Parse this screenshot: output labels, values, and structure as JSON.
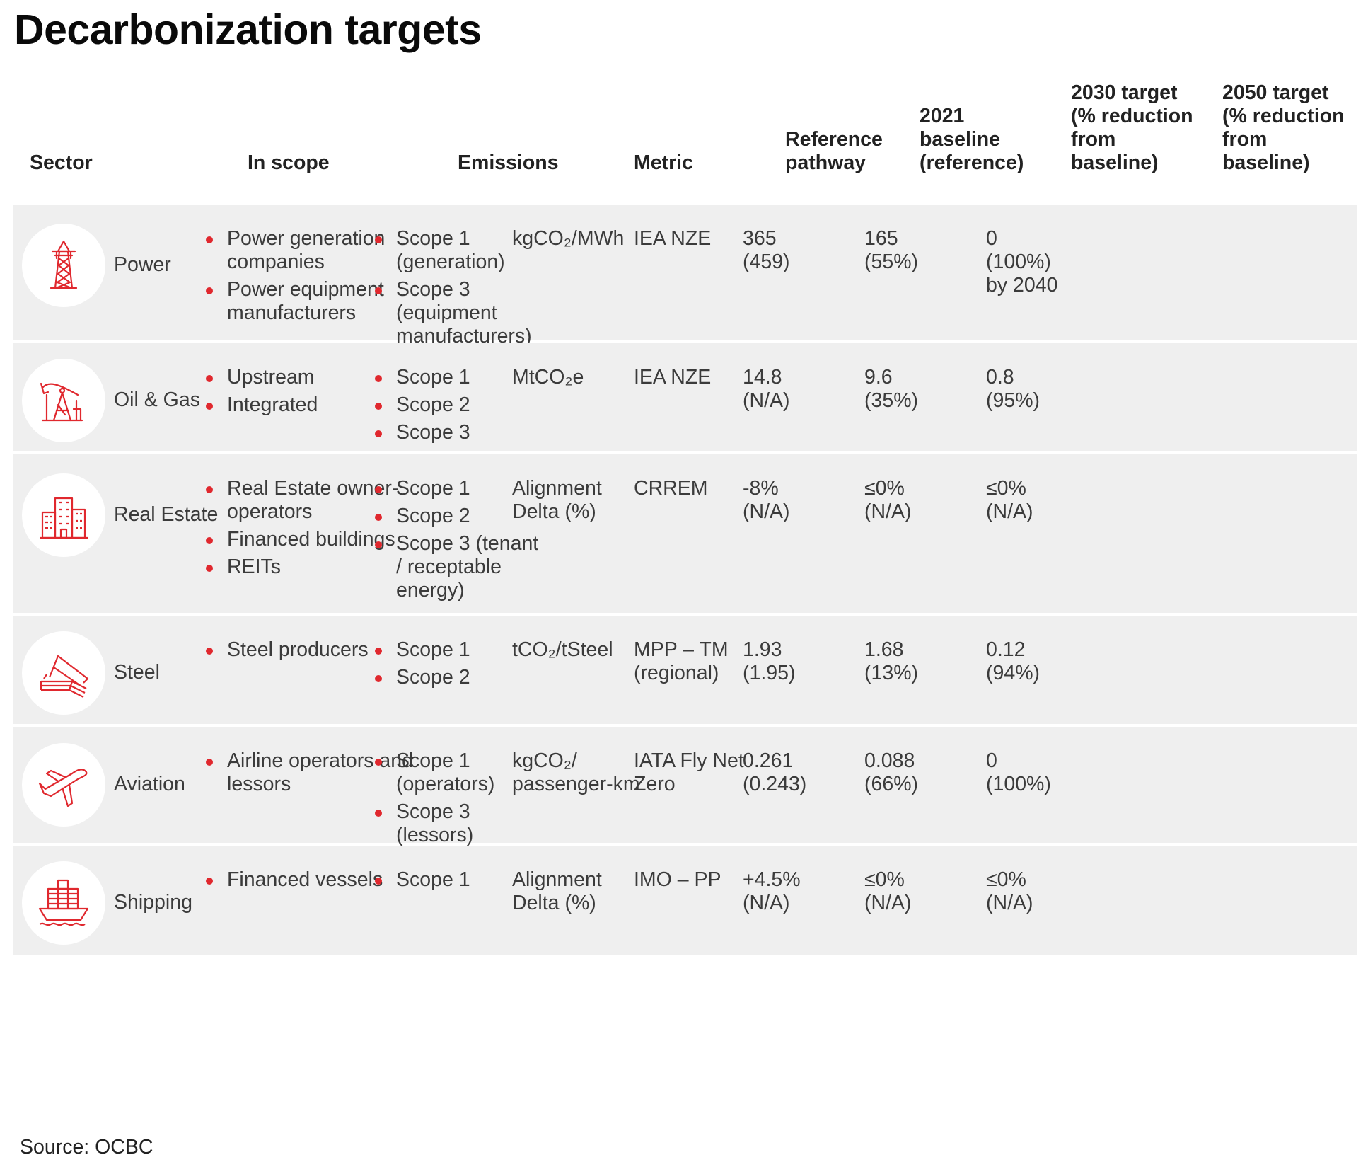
{
  "title": "Decarbonization targets",
  "source": "Source: OCBC",
  "accent_color": "#e0282e",
  "headers": {
    "sector": "Sector",
    "in_scope": "In scope",
    "emissions": "Emissions",
    "metric": "Metric",
    "reference_pathway": "Reference\npathway",
    "baseline_2021": "2021\nbaseline\n(reference)",
    "target_2030": "2030 target\n(% reduction\nfrom\nbaseline)",
    "target_2050": "2050 target\n(% reduction\nfrom\nbaseline)"
  },
  "rows": [
    {
      "sector": "Power",
      "icon": "power-pylon-icon",
      "in_scope": [
        "Power generation companies",
        "Power equipment manufacturers"
      ],
      "emissions": [
        "Scope 1 (generation)",
        "Scope 3 (equipment manufacturers)"
      ],
      "metric": "kgCO₂/MWh",
      "reference_pathway": "IEA NZE",
      "baseline_2021": "365\n(459)",
      "target_2030": "165\n(55%)",
      "target_2050": "0\n(100%)\nby 2040"
    },
    {
      "sector": "Oil & Gas",
      "icon": "oil-pump-icon",
      "in_scope": [
        "Upstream",
        "Integrated"
      ],
      "emissions": [
        "Scope 1",
        "Scope 2",
        "Scope 3"
      ],
      "metric": "MtCO₂e",
      "reference_pathway": "IEA NZE",
      "baseline_2021": "14.8\n(N/A)",
      "target_2030": "9.6\n(35%)",
      "target_2050": "0.8\n(95%)"
    },
    {
      "sector": "Real Estate",
      "icon": "buildings-icon",
      "in_scope": [
        "Real Estate owner-operators",
        "Financed buildings",
        "REITs"
      ],
      "emissions": [
        "Scope 1",
        "Scope 2",
        "Scope 3 (tenant / receptable energy)"
      ],
      "metric": "Alignment Delta (%)",
      "reference_pathway": "CRREM",
      "baseline_2021": "-8%\n(N/A)",
      "target_2030": "≤0%\n(N/A)",
      "target_2050": "≤0%\n(N/A)"
    },
    {
      "sector": "Steel",
      "icon": "steel-beams-icon",
      "in_scope": [
        "Steel producers"
      ],
      "emissions": [
        "Scope 1",
        "Scope 2"
      ],
      "metric": "tCO₂/tSteel",
      "reference_pathway": "MPP – TM (regional)",
      "baseline_2021": "1.93\n(1.95)",
      "target_2030": "1.68\n(13%)",
      "target_2050": "0.12\n(94%)"
    },
    {
      "sector": "Aviation",
      "icon": "airplane-icon",
      "in_scope": [
        "Airline operators and lessors"
      ],
      "emissions": [
        "Scope 1 (operators)",
        "Scope 3 (lessors)"
      ],
      "metric": "kgCO₂/ passenger-km",
      "reference_pathway": "IATA Fly Net Zero",
      "baseline_2021": "0.261\n(0.243)",
      "target_2030": "0.088\n(66%)",
      "target_2050": "0\n(100%)"
    },
    {
      "sector": "Shipping",
      "icon": "cargo-ship-icon",
      "in_scope": [
        "Financed vessels"
      ],
      "emissions": [
        "Scope 1"
      ],
      "metric": "Alignment Delta (%)",
      "reference_pathway": "IMO – PP",
      "baseline_2021": "+4.5%\n(N/A)",
      "target_2030": "≤0%\n(N/A)",
      "target_2050": "≤0%\n(N/A)"
    }
  ]
}
